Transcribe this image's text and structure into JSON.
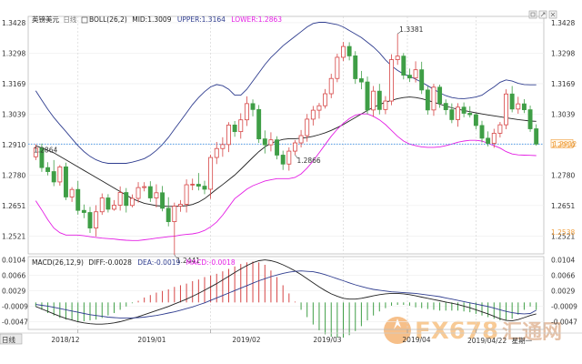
{
  "header": {
    "symbol": "英镑美元",
    "period": "日线",
    "indicator": "BOLL(26,2)",
    "mid_label": "MID:",
    "mid_value": "1.3009",
    "upper_label": "UPPER:",
    "upper_value": "1.3164",
    "lower_label": "LOWER:",
    "lower_value": "1.2863"
  },
  "macd_header": {
    "indicator": "MACD(26,12,9)",
    "diff_label": "DIFF:",
    "diff_value": "-0.0028",
    "dea_label": "DEA:",
    "dea_value": "-0.0019",
    "macd_label": "MACD:",
    "macd_value": "-0.0018"
  },
  "footer": {
    "period_button": "日线",
    "hover_date": "2019/04/22",
    "hover_weekday": "星期一"
  },
  "watermark": {
    "text": "FX678",
    "text2": "汇通网"
  },
  "colors": {
    "up": "#d64545",
    "down": "#3f9e46",
    "mid": "#222222",
    "upper": "#2f3d8f",
    "lower": "#e41ee4",
    "price_line": "#3a8fe8",
    "price_tag": "#f0a040",
    "diff": "#222222",
    "dea": "#2f3d8f"
  },
  "chart_data": [
    {
      "type": "candlestick",
      "y_ticks": [
        1.3428,
        1.3298,
        1.3169,
        1.3039,
        1.291,
        1.278,
        1.2651,
        1.2521
      ],
      "ylim": [
        1.2445,
        1.3455
      ],
      "x_ticks": [
        "2018/12",
        "2019/01",
        "2019/02",
        "2019/03",
        "2019/04"
      ],
      "annotations": [
        {
          "text": "1.3381",
          "value": 1.3381,
          "at": "high"
        },
        {
          "text": "1.2441",
          "value": 1.2441,
          "at": "low"
        },
        {
          "text": "1.2866",
          "value": 1.2866,
          "at": "low"
        },
        {
          "text": "1.2864",
          "value": 1.2864,
          "at": "left"
        }
      ],
      "current_price": {
        "text": "1.2912",
        "value": 1.2912
      },
      "right_labels": [
        {
          "text": "1.2910",
          "value": 1.291
        },
        {
          "text": "1.2538",
          "value": 1.2538
        }
      ],
      "series": [
        {
          "name": "MID",
          "role": "mid",
          "values": [
            1.2905,
            1.2895,
            1.2885,
            1.2875,
            1.286,
            1.2845,
            1.283,
            1.2815,
            1.28,
            1.2785,
            1.277,
            1.2755,
            1.274,
            1.2725,
            1.271,
            1.2695,
            1.268,
            1.267,
            1.266,
            1.2655,
            1.265,
            1.2648,
            1.2647,
            1.2647,
            1.2648,
            1.265,
            1.2655,
            1.2665,
            1.268,
            1.27,
            1.272,
            1.274,
            1.276,
            1.278,
            1.2805,
            1.283,
            1.2855,
            1.288,
            1.29,
            1.2915,
            1.2925,
            1.2932,
            1.2935,
            1.2935,
            1.2937,
            1.294,
            1.2945,
            1.2952,
            1.296,
            1.297,
            1.2982,
            1.2995,
            1.301,
            1.3025,
            1.304,
            1.3055,
            1.3068,
            1.308,
            1.309,
            1.3098,
            1.3105,
            1.311,
            1.3112,
            1.311,
            1.3105,
            1.3098,
            1.309,
            1.3082,
            1.3074,
            1.3066,
            1.306,
            1.3055,
            1.305,
            1.3045,
            1.304,
            1.3036,
            1.3032,
            1.3028,
            1.3024,
            1.302,
            1.3016,
            1.3013,
            1.301,
            1.3009
          ]
        },
        {
          "name": "UPPER",
          "role": "upper",
          "values": [
            1.3139,
            1.3099,
            1.306,
            1.3025,
            1.2995,
            1.2965,
            1.2935,
            1.2905,
            1.288,
            1.286,
            1.2845,
            1.2835,
            1.283,
            1.283,
            1.283,
            1.283,
            1.2835,
            1.2842,
            1.285,
            1.2865,
            1.2885,
            1.291,
            1.294,
            1.2975,
            1.301,
            1.3045,
            1.308,
            1.311,
            1.3135,
            1.3155,
            1.3165,
            1.316,
            1.3145,
            1.312,
            1.312,
            1.3145,
            1.318,
            1.3215,
            1.325,
            1.328,
            1.3305,
            1.333,
            1.335,
            1.337,
            1.339,
            1.341,
            1.3425,
            1.343,
            1.343,
            1.3425,
            1.342,
            1.341,
            1.3395,
            1.338,
            1.3365,
            1.3345,
            1.3325,
            1.33,
            1.327,
            1.3245,
            1.3225,
            1.321,
            1.32,
            1.3188,
            1.3175,
            1.316,
            1.3145,
            1.313,
            1.3118,
            1.311,
            1.3106,
            1.3105,
            1.3108,
            1.3112,
            1.312,
            1.3138,
            1.3155,
            1.3175,
            1.3185,
            1.318,
            1.317,
            1.3165,
            1.3164,
            1.3164
          ]
        },
        {
          "name": "LOWER",
          "role": "lower",
          "values": [
            1.2671,
            1.2632,
            1.259,
            1.2555,
            1.2535,
            1.2525,
            1.2525,
            1.2525,
            1.2522,
            1.2518,
            1.2515,
            1.2512,
            1.251,
            1.2508,
            1.2505,
            1.2503,
            1.2502,
            1.2502,
            1.2505,
            1.2508,
            1.2512,
            1.2515,
            1.2518,
            1.252,
            1.2525,
            1.2528,
            1.253,
            1.2535,
            1.2545,
            1.256,
            1.258,
            1.261,
            1.2645,
            1.268,
            1.27,
            1.272,
            1.2735,
            1.2745,
            1.2755,
            1.276,
            1.2765,
            1.2765,
            1.2765,
            1.277,
            1.2785,
            1.281,
            1.284,
            1.2875,
            1.291,
            1.2945,
            1.2975,
            1.3,
            1.302,
            1.3035,
            1.304,
            1.304,
            1.303,
            1.3015,
            1.2995,
            1.297,
            1.2945,
            1.2925,
            1.2912,
            1.2905,
            1.29,
            1.2898,
            1.2898,
            1.29,
            1.2905,
            1.2912,
            1.292,
            1.2925,
            1.2928,
            1.2928,
            1.2925,
            1.2915,
            1.2905,
            1.2895,
            1.288,
            1.287,
            1.2866,
            1.2865,
            1.2864,
            1.2863
          ]
        },
        {
          "name": "Price",
          "role": "candles",
          "open": [
            1.2858,
            1.2895,
            1.2812,
            1.2795,
            1.2751,
            1.2815,
            1.2687,
            1.2719,
            1.263,
            1.2621,
            1.2555,
            1.2624,
            1.2683,
            1.2635,
            1.2652,
            1.2706,
            1.2651,
            1.2681,
            1.2727,
            1.2731,
            1.2683,
            1.2705,
            1.2639,
            1.2582,
            1.2648,
            1.2656,
            1.2739,
            1.2741,
            1.2733,
            1.272,
            1.2855,
            1.2893,
            1.291,
            1.2993,
            1.2965,
            1.3015,
            1.3084,
            1.3059,
            1.2934,
            1.2909,
            1.293,
            1.2865,
            1.2827,
            1.2882,
            1.2917,
            1.2948,
            1.3018,
            1.3056,
            1.3075,
            1.3126,
            1.3191,
            1.3281,
            1.3327,
            1.3287,
            1.319,
            1.3176,
            1.3057,
            1.3137,
            1.3059,
            1.3095,
            1.3271,
            1.3286,
            1.3205,
            1.3193,
            1.3228,
            1.3142,
            1.3057,
            1.3154,
            1.3085,
            1.3058,
            1.3016,
            1.3069,
            1.3043,
            1.3037,
            1.2991,
            1.2937,
            1.2915,
            1.2958,
            1.2994,
            1.3125,
            1.3061,
            1.3083,
            1.3058,
            1.2977
          ],
          "high": [
            1.2911,
            1.2914,
            1.2835,
            1.2844,
            1.2823,
            1.2833,
            1.2729,
            1.2755,
            1.2655,
            1.2645,
            1.2652,
            1.2702,
            1.2699,
            1.2674,
            1.2732,
            1.2725,
            1.2698,
            1.275,
            1.275,
            1.2754,
            1.2741,
            1.2734,
            1.2686,
            1.2663,
            1.2674,
            1.2762,
            1.2765,
            1.2789,
            1.2756,
            1.2867,
            1.2921,
            1.2941,
            1.3005,
            1.301,
            1.3043,
            1.3115,
            1.3102,
            1.3078,
            1.297,
            1.2962,
            1.2945,
            1.2884,
            1.2898,
            1.2929,
            1.2972,
            1.304,
            1.3074,
            1.3087,
            1.3146,
            1.3211,
            1.3296,
            1.3346,
            1.3345,
            1.3307,
            1.3223,
            1.3199,
            1.3159,
            1.3168,
            1.3116,
            1.3294,
            1.3381,
            1.3299,
            1.3233,
            1.3264,
            1.3262,
            1.3158,
            1.3168,
            1.3165,
            1.3102,
            1.3085,
            1.3086,
            1.3089,
            1.3073,
            1.3042,
            1.3011,
            1.2966,
            1.2977,
            1.3006,
            1.3145,
            1.3159,
            1.3113,
            1.3103,
            1.3076,
            1.2996
          ],
          "low": [
            1.2844,
            1.2794,
            1.2779,
            1.2733,
            1.2735,
            1.2674,
            1.2666,
            1.2612,
            1.2597,
            1.2534,
            1.2519,
            1.2611,
            1.2621,
            1.2629,
            1.2629,
            1.2621,
            1.2643,
            1.2663,
            1.2711,
            1.2666,
            1.2643,
            1.2626,
            1.2562,
            1.2441,
            1.2624,
            1.2621,
            1.2716,
            1.2715,
            1.2699,
            1.2679,
            1.2827,
            1.2858,
            1.2878,
            1.2943,
            1.2935,
            1.2989,
            1.303,
            1.2917,
            1.2872,
            1.2881,
            1.2847,
            1.2802,
            1.2799,
            1.2866,
            1.2898,
            1.2922,
            1.2991,
            1.302,
            1.3063,
            1.3107,
            1.3175,
            1.3265,
            1.3268,
            1.3168,
            1.3145,
            1.3039,
            1.3028,
            1.3038,
            1.3039,
            1.3077,
            1.3249,
            1.3187,
            1.3176,
            1.3174,
            1.3125,
            1.3037,
            1.3032,
            1.3066,
            1.3036,
            1.3001,
            1.2986,
            1.3026,
            1.3025,
            1.2975,
            1.2919,
            1.2902,
            1.2896,
            1.294,
            1.2975,
            1.3047,
            1.3041,
            1.3044,
            1.2964,
            1.2905
          ],
          "close": [
            1.2895,
            1.2812,
            1.2795,
            1.2751,
            1.2815,
            1.2687,
            1.2719,
            1.263,
            1.2621,
            1.2555,
            1.2624,
            1.2683,
            1.2635,
            1.2652,
            1.2706,
            1.2651,
            1.2681,
            1.2727,
            1.2731,
            1.2683,
            1.2705,
            1.2639,
            1.2582,
            1.2648,
            1.2656,
            1.2739,
            1.2741,
            1.2733,
            1.272,
            1.2855,
            1.2893,
            1.291,
            1.2993,
            1.2965,
            1.3015,
            1.3084,
            1.3059,
            1.2934,
            1.2909,
            1.293,
            1.2865,
            1.2827,
            1.2882,
            1.2917,
            1.2948,
            1.3018,
            1.3056,
            1.3075,
            1.3126,
            1.3191,
            1.3281,
            1.3327,
            1.3287,
            1.319,
            1.3176,
            1.3057,
            1.3137,
            1.3059,
            1.3095,
            1.3271,
            1.3286,
            1.3205,
            1.3193,
            1.3228,
            1.3142,
            1.3057,
            1.3154,
            1.3085,
            1.3058,
            1.3016,
            1.3069,
            1.3043,
            1.3037,
            1.2991,
            1.2937,
            1.2915,
            1.2958,
            1.2994,
            1.3125,
            1.3061,
            1.3083,
            1.3058,
            1.2977,
            1.2912
          ]
        }
      ]
    },
    {
      "type": "macd",
      "y_ticks": [
        0.0104,
        0.0066,
        0.0029,
        -0.0009,
        -0.0047
      ],
      "ylim": [
        -0.0066,
        0.0112
      ],
      "series": [
        {
          "name": "DIFF",
          "role": "diff",
          "values": [
            -0.001,
            -0.0016,
            -0.0022,
            -0.0028,
            -0.0034,
            -0.0039,
            -0.0043,
            -0.0047,
            -0.005,
            -0.0052,
            -0.0053,
            -0.0053,
            -0.0052,
            -0.005,
            -0.0047,
            -0.0043,
            -0.0039,
            -0.0035,
            -0.003,
            -0.0025,
            -0.002,
            -0.0015,
            -0.001,
            -0.0004,
            0.0002,
            0.0008,
            0.0015,
            0.0022,
            0.003,
            0.0038,
            0.0046,
            0.0055,
            0.0064,
            0.0073,
            0.0082,
            0.009,
            0.0097,
            0.0102,
            0.0104,
            0.0102,
            0.0098,
            0.0092,
            0.0085,
            0.0077,
            0.0068,
            0.0058,
            0.0048,
            0.0038,
            0.0029,
            0.0021,
            0.0015,
            0.001,
            0.0008,
            0.0008,
            0.001,
            0.0013,
            0.0016,
            0.0019,
            0.0021,
            0.0022,
            0.0022,
            0.0021,
            0.0019,
            0.0016,
            0.0013,
            0.001,
            0.0007,
            0.0004,
            0.0001,
            -0.0002,
            -0.0005,
            -0.0009,
            -0.0013,
            -0.0018,
            -0.0023,
            -0.0028,
            -0.0034,
            -0.004,
            -0.0044,
            -0.0045,
            -0.0042,
            -0.0037,
            -0.0032,
            -0.0028
          ]
        },
        {
          "name": "DEA",
          "role": "dea",
          "values": [
            -0.0005,
            -0.0007,
            -0.0009,
            -0.0012,
            -0.0015,
            -0.0018,
            -0.0021,
            -0.0024,
            -0.0027,
            -0.003,
            -0.0032,
            -0.0034,
            -0.0036,
            -0.0037,
            -0.0038,
            -0.0038,
            -0.0038,
            -0.0037,
            -0.0036,
            -0.0034,
            -0.0032,
            -0.0029,
            -0.0026,
            -0.0023,
            -0.0019,
            -0.0015,
            -0.0011,
            -0.0006,
            -0.0001,
            0.0005,
            0.0011,
            0.0017,
            0.0023,
            0.0029,
            0.0035,
            0.0041,
            0.0047,
            0.0053,
            0.0058,
            0.0063,
            0.0067,
            0.0071,
            0.0074,
            0.0076,
            0.0077,
            0.0076,
            0.0075,
            0.0072,
            0.0068,
            0.0063,
            0.0058,
            0.0053,
            0.0048,
            0.0043,
            0.0039,
            0.0035,
            0.0032,
            0.003,
            0.0028,
            0.0026,
            0.0025,
            0.0024,
            0.0023,
            0.0022,
            0.002,
            0.0018,
            0.0016,
            0.0014,
            0.0011,
            0.0008,
            0.0005,
            0.0002,
            -0.0001,
            -0.0004,
            -0.0007,
            -0.001,
            -0.0014,
            -0.0018,
            -0.0022,
            -0.0025,
            -0.0027,
            -0.0028,
            -0.0027,
            -0.0019
          ]
        },
        {
          "name": "MACD",
          "role": "histogram",
          "values": [
            -0.001,
            -0.0018,
            -0.0026,
            -0.0032,
            -0.0038,
            -0.0042,
            -0.0044,
            -0.0046,
            -0.0046,
            -0.0044,
            -0.0042,
            -0.0038,
            -0.0032,
            -0.0026,
            -0.0018,
            -0.001,
            -0.0002,
            0.0004,
            0.0012,
            0.0018,
            0.0024,
            0.0028,
            0.0032,
            0.0038,
            0.0042,
            0.0046,
            0.0052,
            0.0056,
            0.0062,
            0.0066,
            0.007,
            0.0076,
            0.0082,
            0.0088,
            0.0094,
            0.0098,
            0.01,
            0.0098,
            0.0092,
            0.0078,
            0.0062,
            0.0042,
            0.0022,
            0.0002,
            -0.0018,
            -0.0036,
            -0.0054,
            -0.0068,
            -0.0078,
            -0.0084,
            -0.0086,
            -0.0086,
            -0.008,
            -0.007,
            -0.0058,
            -0.0044,
            -0.0032,
            -0.0022,
            -0.0014,
            -0.0008,
            -0.0006,
            -0.0006,
            -0.0008,
            -0.0012,
            -0.0014,
            -0.0016,
            -0.0018,
            -0.002,
            -0.002,
            -0.002,
            -0.002,
            -0.0022,
            -0.0024,
            -0.0028,
            -0.0032,
            -0.0036,
            -0.004,
            -0.0044,
            -0.0044,
            -0.004,
            -0.003,
            -0.0018,
            -0.001,
            -0.0018
          ]
        }
      ]
    }
  ]
}
